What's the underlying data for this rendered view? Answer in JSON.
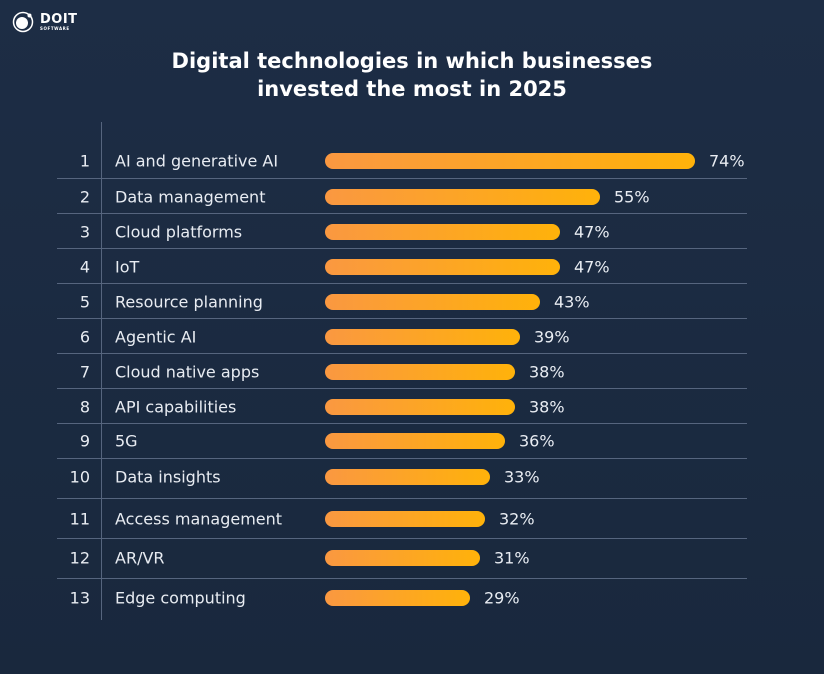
{
  "brand": {
    "name": "DOIT",
    "sub": "SOFTWARE"
  },
  "chart_data": {
    "type": "bar",
    "orientation": "horizontal",
    "title": "Digital technologies in which businesses invested the most in 2025",
    "title_lines": [
      "Digital technologies in which businesses",
      "invested the most in 2025"
    ],
    "categories": [
      "AI and generative AI",
      "Data management",
      "Cloud platforms",
      "IoT",
      "Resource planning",
      "Agentic AI",
      "Cloud native apps",
      "API capabilities",
      "5G",
      "Data insights",
      "Access management",
      "AR/VR",
      "Edge computing"
    ],
    "ranks": [
      "1",
      "2",
      "3",
      "4",
      "5",
      "6",
      "7",
      "8",
      "9",
      "10",
      "11",
      "12",
      "13"
    ],
    "values": [
      74,
      55,
      47,
      47,
      43,
      39,
      38,
      38,
      36,
      33,
      32,
      31,
      29
    ],
    "value_labels": [
      "74%",
      "55%",
      "47%",
      "47%",
      "43%",
      "39%",
      "38%",
      "38%",
      "36%",
      "33%",
      "32%",
      "31%",
      "29%"
    ],
    "unit": "%",
    "bar_gradient": [
      "#fa9841",
      "#ffb20a"
    ],
    "grid": false
  }
}
